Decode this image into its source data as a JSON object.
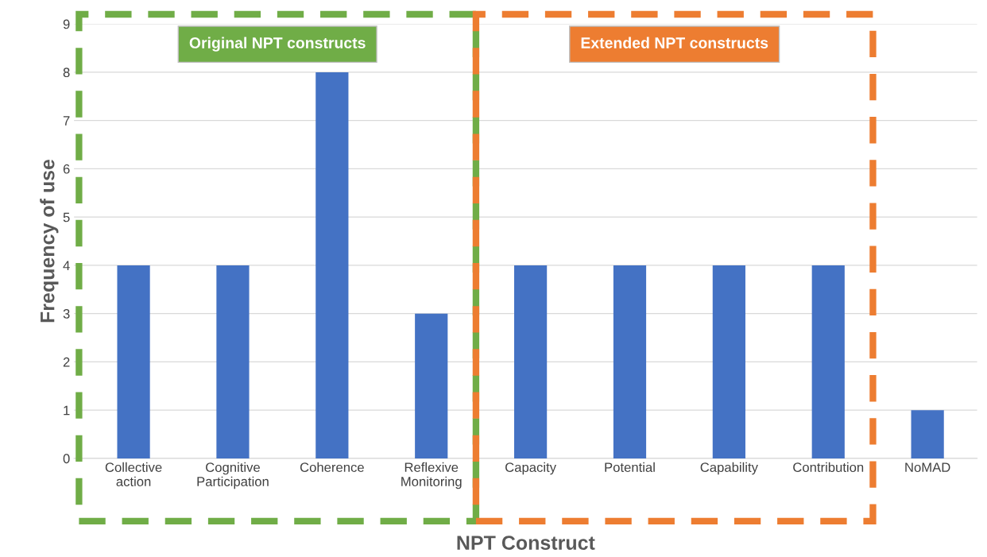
{
  "chart_data": {
    "type": "bar",
    "xlabel": "NPT Construct",
    "ylabel": "Frequency of use",
    "categories": [
      "Collective\naction",
      "Cognitive\nParticipation",
      "Coherence",
      "Reflexive\nMonitoring",
      "Capacity",
      "Potential",
      "Capability",
      "Contribution",
      "NoMAD"
    ],
    "values": [
      4,
      4,
      8,
      3,
      4,
      4,
      4,
      4,
      1
    ],
    "color": "#4472c4",
    "ylim": [
      0,
      9
    ],
    "yticks": [
      0,
      1,
      2,
      3,
      4,
      5,
      6,
      7,
      8,
      9
    ],
    "grid": "y",
    "bands": [
      {
        "axis": "x",
        "from": "Collective\naction",
        "to": "Reflexive\nMonitoring",
        "label": "Original NPT constructs",
        "color": "#70ad47"
      },
      {
        "axis": "x",
        "from": "Capacity",
        "to": "Contribution",
        "label": "Extended NPT constructs",
        "color": "#ed7d31"
      }
    ]
  }
}
